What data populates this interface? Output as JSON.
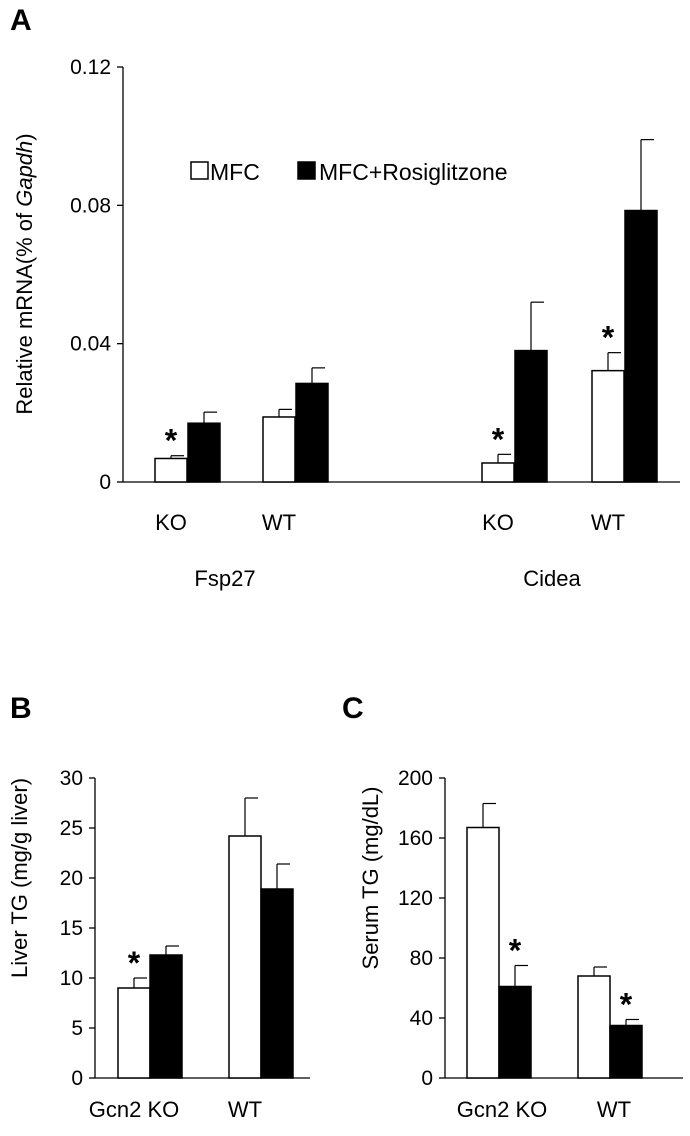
{
  "legend": [
    {
      "label": "MFC",
      "fill": "#ffffff"
    },
    {
      "label": "MFC+Rosiglitzone",
      "fill": "#000000"
    }
  ],
  "chart_data": [
    {
      "panel": "A",
      "type": "bar",
      "ylabel_prefix": "Relative mRNA(% of ",
      "ylabel_italic": "Gapdh",
      "ylabel_suffix": ")",
      "ylim": [
        0,
        0.12
      ],
      "yticks": [
        "0",
        "0.04",
        "0.08",
        "0.12"
      ],
      "ytick_values": [
        0,
        0.04,
        0.08,
        0.12
      ],
      "groups": [
        {
          "name": "Fsp27",
          "categories": [
            "KO",
            "WT"
          ]
        },
        {
          "name": "Cidea",
          "categories": [
            "KO",
            "WT"
          ]
        }
      ],
      "series": [
        {
          "name": "MFC",
          "values": [
            0.0068,
            0.0188,
            0.0055,
            0.0322
          ],
          "errors": [
            0.0008,
            0.0022,
            0.0025,
            0.0052
          ],
          "significant": [
            true,
            false,
            true,
            true
          ]
        },
        {
          "name": "MFC+Rosiglitzone",
          "values": [
            0.017,
            0.0285,
            0.038,
            0.0785
          ],
          "errors": [
            0.0032,
            0.0045,
            0.014,
            0.0205
          ],
          "significant": [
            false,
            false,
            false,
            false
          ]
        }
      ]
    },
    {
      "panel": "B",
      "type": "bar",
      "ylabel": "Liver TG (mg/g liver)",
      "ylim": [
        0,
        30
      ],
      "yticks": [
        "0",
        "5",
        "10",
        "15",
        "20",
        "25",
        "30"
      ],
      "ytick_values": [
        0,
        5,
        10,
        15,
        20,
        25,
        30
      ],
      "categories": [
        "Gcn2 KO",
        "WT"
      ],
      "series": [
        {
          "name": "MFC",
          "values": [
            9.0,
            24.2
          ],
          "errors": [
            1.0,
            3.8
          ],
          "significant": [
            true,
            false
          ]
        },
        {
          "name": "MFC+Rosiglitzone",
          "values": [
            12.3,
            18.9
          ],
          "errors": [
            0.9,
            2.5
          ],
          "significant": [
            false,
            false
          ]
        }
      ]
    },
    {
      "panel": "C",
      "type": "bar",
      "ylabel": "Serum TG (mg/dL)",
      "ylim": [
        0,
        200
      ],
      "yticks": [
        "0",
        "40",
        "80",
        "120",
        "160",
        "200"
      ],
      "ytick_values": [
        0,
        40,
        80,
        120,
        160,
        200
      ],
      "categories": [
        "Gcn2 KO",
        "WT"
      ],
      "series": [
        {
          "name": "MFC",
          "values": [
            167,
            68
          ],
          "errors": [
            16,
            6
          ],
          "significant": [
            false,
            false
          ]
        },
        {
          "name": "MFC+Rosiglitzone",
          "values": [
            61,
            35
          ],
          "errors": [
            14,
            4
          ],
          "significant": [
            true,
            true
          ]
        }
      ]
    }
  ],
  "significance_mark": "*"
}
